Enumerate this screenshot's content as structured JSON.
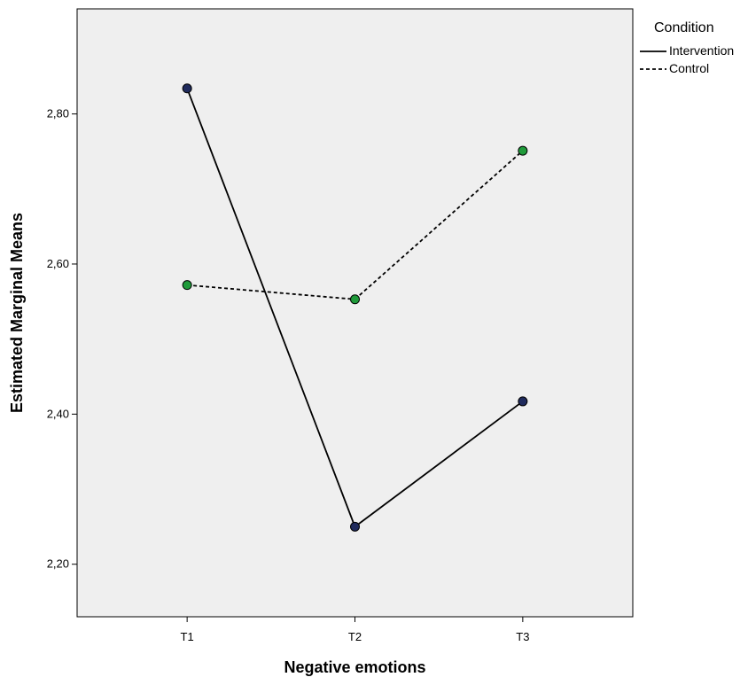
{
  "chart_data": {
    "type": "line",
    "title": "",
    "xlabel": "Negative emotions",
    "ylabel": "Estimated Marginal Means",
    "categories": [
      "T1",
      "T2",
      "T3"
    ],
    "ylim": [
      2.13,
      2.94
    ],
    "yticks": [
      2.2,
      2.4,
      2.6,
      2.8
    ],
    "ytick_labels": [
      "2,20",
      "2,40",
      "2,60",
      "2,80"
    ],
    "grid": false,
    "legend": {
      "title": "Condition",
      "placement": "right-outside-top"
    },
    "series": [
      {
        "name": "Intervention",
        "values": [
          2.834,
          2.25,
          2.417
        ],
        "line_style": "solid",
        "marker_color": "#1f2a5c"
      },
      {
        "name": "Control",
        "values": [
          2.572,
          2.553,
          2.751
        ],
        "line_style": "dashed",
        "marker_color": "#1f9a3a"
      }
    ],
    "colors": {
      "plot_background": "#efefef",
      "line": "#000000"
    }
  }
}
